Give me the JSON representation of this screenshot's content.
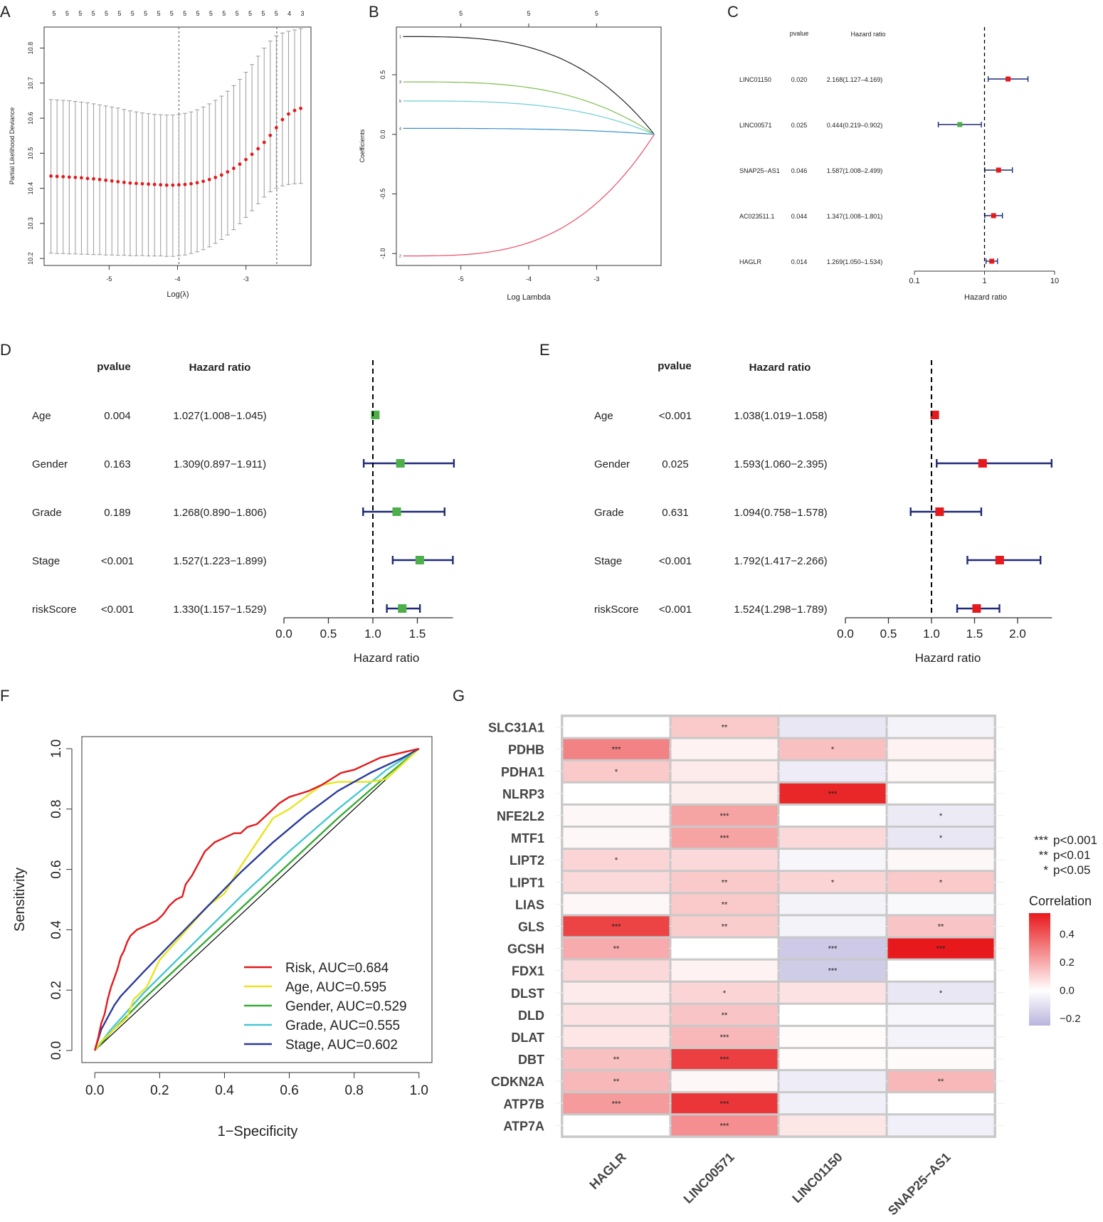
{
  "panel_labels": {
    "a": "A",
    "b": "B",
    "c": "C",
    "d": "D",
    "e": "E",
    "f": "F",
    "g": "G"
  },
  "colors": {
    "red": "#e41a1c",
    "green": "#4daf4a",
    "navy": "#1f2a78",
    "grey": "#9a9a9a",
    "black": "#000000"
  },
  "chart_data": [
    {
      "id": "A",
      "type": "scatter",
      "xlabel": "Log(λ)",
      "ylabel": "Partial Likelihood Deviance",
      "xlim": [
        -5.95,
        -2.05
      ],
      "ylim": [
        10.18,
        10.86
      ],
      "xticks": [
        "-5",
        "-4",
        "-3"
      ],
      "xtick_values": [
        -5,
        -4,
        -3
      ],
      "yticks": [
        "10.2",
        "10.3",
        "10.4",
        "10.5",
        "10.6",
        "10.7",
        "10.8"
      ],
      "ytick_values": [
        10.2,
        10.3,
        10.4,
        10.5,
        10.6,
        10.7,
        10.8
      ],
      "top_labels": [
        "5",
        "5",
        "5",
        "5",
        "5",
        "5",
        "5",
        "5",
        "5",
        "5",
        "5",
        "5",
        "5",
        "5",
        "5",
        "5",
        "5",
        "5",
        "4",
        "3"
      ],
      "vlines": [
        -3.98,
        -2.55
      ],
      "x_start": -5.85,
      "x_end": -2.2,
      "y_values": [
        10.435,
        10.434,
        10.433,
        10.432,
        10.431,
        10.43,
        10.428,
        10.427,
        10.425,
        10.423,
        10.421,
        10.419,
        10.417,
        10.415,
        10.414,
        10.413,
        10.412,
        10.411,
        10.41,
        10.409,
        10.409,
        10.41,
        10.411,
        10.413,
        10.416,
        10.42,
        10.425,
        10.431,
        10.438,
        10.447,
        10.457,
        10.469,
        10.482,
        10.497,
        10.513,
        10.531,
        10.551,
        10.573,
        10.596,
        10.612,
        10.622,
        10.628
      ],
      "lower": [
        10.215,
        10.214,
        10.214,
        10.213,
        10.213,
        10.212,
        10.212,
        10.211,
        10.211,
        10.21,
        10.21,
        10.209,
        10.209,
        10.208,
        10.208,
        10.208,
        10.207,
        10.207,
        10.207,
        10.206,
        10.206,
        10.208,
        10.21,
        10.214,
        10.219,
        10.225,
        10.233,
        10.243,
        10.254,
        10.267,
        10.282,
        10.299,
        10.317,
        10.336,
        10.356,
        10.375,
        10.39,
        10.4,
        10.407,
        10.411,
        10.413,
        10.414
      ],
      "upper": [
        10.653,
        10.652,
        10.651,
        10.65,
        10.648,
        10.646,
        10.644,
        10.641,
        10.638,
        10.635,
        10.632,
        10.629,
        10.625,
        10.621,
        10.618,
        10.615,
        10.613,
        10.611,
        10.61,
        10.609,
        10.609,
        10.611,
        10.614,
        10.618,
        10.624,
        10.632,
        10.641,
        10.651,
        10.663,
        10.677,
        10.693,
        10.711,
        10.731,
        10.753,
        10.777,
        10.8,
        10.82,
        10.835,
        10.843,
        10.848,
        10.852,
        10.855
      ]
    },
    {
      "id": "B",
      "type": "line",
      "xlabel": "Log Lambda",
      "ylabel": "Coefficients",
      "xlim": [
        -5.95,
        -2.05
      ],
      "ylim": [
        -1.1,
        0.9
      ],
      "xticks": [
        "-5",
        "-4",
        "-3"
      ],
      "xtick_values": [
        -5,
        -4,
        -3
      ],
      "yticks": [
        "-1.0",
        "-0.5",
        "0.0",
        "0.5"
      ],
      "ytick_values": [
        -1.0,
        -0.5,
        0.0,
        0.5
      ],
      "top_labels": [
        "5",
        "5",
        "5"
      ],
      "top_label_x": [
        -5,
        -4,
        -3
      ],
      "x_start": -5.85,
      "x_end": -2.15,
      "series": [
        {
          "name": "1",
          "color": "#222222",
          "start": 0.82
        },
        {
          "name": "3",
          "color": "#7fbf50",
          "start": 0.44
        },
        {
          "name": "5",
          "color": "#6ccfd6",
          "start": 0.28
        },
        {
          "name": "4",
          "color": "#3a8fd0",
          "start": 0.05
        },
        {
          "name": "2",
          "color": "#ec4b63",
          "start": -1.02
        }
      ]
    },
    {
      "id": "C",
      "type": "forest",
      "xlabel": "Hazard ratio",
      "col_pvalue": "pvalue",
      "col_hr": "Hazard ratio",
      "xticks": [
        "0.1",
        "1",
        "10"
      ],
      "xtick_values": [
        0.1,
        1,
        10
      ],
      "scale": "log",
      "rows": [
        {
          "name": "LINC01150",
          "p": "0.020",
          "hr": "2.168(1.127–4.169)",
          "est": 2.168,
          "lo": 1.127,
          "hi": 4.169,
          "color": "#e41a1c"
        },
        {
          "name": "LINC00571",
          "p": "0.025",
          "hr": "0.444(0.219–0.902)",
          "est": 0.444,
          "lo": 0.219,
          "hi": 0.902,
          "color": "#4daf4a"
        },
        {
          "name": "SNAP25−AS1",
          "p": "0.046",
          "hr": "1.587(1.008–2.499)",
          "est": 1.587,
          "lo": 1.008,
          "hi": 2.499,
          "color": "#e41a1c"
        },
        {
          "name": "AC023511.1",
          "p": "0.044",
          "hr": "1.347(1.008–1.801)",
          "est": 1.347,
          "lo": 1.008,
          "hi": 1.801,
          "color": "#e41a1c"
        },
        {
          "name": "HAGLR",
          "p": "0.014",
          "hr": "1.269(1.050–1.534)",
          "est": 1.269,
          "lo": 1.05,
          "hi": 1.534,
          "color": "#e41a1c"
        }
      ]
    },
    {
      "id": "D",
      "type": "forest",
      "xlabel": "Hazard ratio",
      "col_pvalue": "pvalue",
      "col_hr": "Hazard ratio",
      "xticks": [
        "0.0",
        "0.5",
        "1.0",
        "1.5"
      ],
      "xtick_values": [
        0,
        0.5,
        1,
        1.5
      ],
      "scale": "linear",
      "xmax": 1.9,
      "rows": [
        {
          "name": "Age",
          "p": "0.004",
          "hr": "1.027(1.008−1.045)",
          "est": 1.027,
          "lo": 1.008,
          "hi": 1.045,
          "color": "#4daf4a"
        },
        {
          "name": "Gender",
          "p": "0.163",
          "hr": "1.309(0.897−1.911)",
          "est": 1.309,
          "lo": 0.897,
          "hi": 1.911,
          "color": "#4daf4a"
        },
        {
          "name": "Grade",
          "p": "0.189",
          "hr": "1.268(0.890−1.806)",
          "est": 1.268,
          "lo": 0.89,
          "hi": 1.806,
          "color": "#4daf4a"
        },
        {
          "name": "Stage",
          "p": "<0.001",
          "hr": "1.527(1.223−1.899)",
          "est": 1.527,
          "lo": 1.223,
          "hi": 1.899,
          "color": "#4daf4a"
        },
        {
          "name": "riskScore",
          "p": "<0.001",
          "hr": "1.330(1.157−1.529)",
          "est": 1.33,
          "lo": 1.157,
          "hi": 1.529,
          "color": "#4daf4a"
        }
      ]
    },
    {
      "id": "E",
      "type": "forest",
      "xlabel": "Hazard ratio",
      "col_pvalue": "pvalue",
      "col_hr": "Hazard ratio",
      "xticks": [
        "0.0",
        "0.5",
        "1.0",
        "1.5",
        "2.0"
      ],
      "xtick_values": [
        0,
        0.5,
        1,
        1.5,
        2
      ],
      "scale": "linear",
      "xmax": 2.4,
      "rows": [
        {
          "name": "Age",
          "p": "<0.001",
          "hr": "1.038(1.019−1.058)",
          "est": 1.038,
          "lo": 1.019,
          "hi": 1.058,
          "color": "#e41a1c"
        },
        {
          "name": "Gender",
          "p": "0.025",
          "hr": "1.593(1.060−2.395)",
          "est": 1.593,
          "lo": 1.06,
          "hi": 2.395,
          "color": "#e41a1c"
        },
        {
          "name": "Grade",
          "p": "0.631",
          "hr": "1.094(0.758−1.578)",
          "est": 1.094,
          "lo": 0.758,
          "hi": 1.578,
          "color": "#e41a1c"
        },
        {
          "name": "Stage",
          "p": "<0.001",
          "hr": "1.792(1.417−2.266)",
          "est": 1.792,
          "lo": 1.417,
          "hi": 2.266,
          "color": "#e41a1c"
        },
        {
          "name": "riskScore",
          "p": "<0.001",
          "hr": "1.524(1.298−1.789)",
          "est": 1.524,
          "lo": 1.298,
          "hi": 1.789,
          "color": "#e41a1c"
        }
      ]
    },
    {
      "id": "F",
      "type": "line",
      "xlabel": "1−Specificity",
      "ylabel": "Sensitivity",
      "xlim": [
        -0.04,
        1.04
      ],
      "ylim": [
        -0.04,
        1.04
      ],
      "xticks": [
        "0.0",
        "0.2",
        "0.4",
        "0.6",
        "0.8",
        "1.0"
      ],
      "xtick_values": [
        0,
        0.2,
        0.4,
        0.6,
        0.8,
        1.0
      ],
      "yticks": [
        "0.0",
        "0.2",
        "0.4",
        "0.6",
        "0.8",
        "1.0"
      ],
      "ytick_values": [
        0,
        0.2,
        0.4,
        0.6,
        0.8,
        1.0
      ],
      "series": [
        {
          "name": "Gender",
          "label": "Gender, AUC=0.529",
          "color": "#3aaa35",
          "x": [
            0,
            0.05,
            0.15,
            0.3,
            0.45,
            0.6,
            0.75,
            0.9,
            1
          ],
          "y": [
            0,
            0.06,
            0.17,
            0.32,
            0.47,
            0.62,
            0.77,
            0.91,
            1
          ]
        },
        {
          "name": "Grade",
          "label": "Grade, AUC=0.555",
          "color": "#47c7d0",
          "x": [
            0,
            0.05,
            0.15,
            0.3,
            0.45,
            0.6,
            0.75,
            0.9,
            1
          ],
          "y": [
            0,
            0.07,
            0.19,
            0.35,
            0.51,
            0.66,
            0.8,
            0.93,
            1
          ]
        },
        {
          "name": "Age",
          "label": "Age, AUC=0.595",
          "color": "#e8e41f",
          "x": [
            0,
            0.02,
            0.05,
            0.1,
            0.12,
            0.16,
            0.2,
            0.25,
            0.3,
            0.35,
            0.4,
            0.45,
            0.5,
            0.55,
            0.6,
            0.65,
            0.7,
            0.75,
            0.8,
            0.85,
            0.9,
            0.95,
            1
          ],
          "y": [
            0,
            0.03,
            0.06,
            0.11,
            0.17,
            0.21,
            0.3,
            0.36,
            0.42,
            0.48,
            0.52,
            0.61,
            0.69,
            0.77,
            0.8,
            0.84,
            0.88,
            0.89,
            0.89,
            0.89,
            0.9,
            0.95,
            1
          ]
        },
        {
          "name": "Stage",
          "label": "Stage, AUC=0.602",
          "color": "#2b3b9c",
          "x": [
            0,
            0.02,
            0.04,
            0.06,
            0.08,
            0.15,
            0.25,
            0.35,
            0.45,
            0.55,
            0.65,
            0.75,
            0.85,
            0.95,
            1
          ],
          "y": [
            0,
            0.07,
            0.11,
            0.15,
            0.18,
            0.26,
            0.37,
            0.48,
            0.59,
            0.69,
            0.78,
            0.86,
            0.92,
            0.97,
            1
          ]
        },
        {
          "name": "Risk",
          "label": "Risk, AUC=0.684",
          "color": "#e31a1c",
          "x": [
            0,
            0.01,
            0.02,
            0.03,
            0.04,
            0.05,
            0.06,
            0.07,
            0.08,
            0.09,
            0.1,
            0.11,
            0.12,
            0.13,
            0.15,
            0.17,
            0.19,
            0.21,
            0.23,
            0.25,
            0.27,
            0.28,
            0.3,
            0.32,
            0.34,
            0.35,
            0.37,
            0.39,
            0.41,
            0.43,
            0.45,
            0.47,
            0.5,
            0.53,
            0.55,
            0.57,
            0.6,
            0.63,
            0.66,
            0.7,
            0.73,
            0.76,
            0.8,
            0.84,
            0.88,
            0.92,
            0.96,
            1
          ],
          "y": [
            0,
            0.04,
            0.09,
            0.12,
            0.17,
            0.21,
            0.24,
            0.27,
            0.31,
            0.33,
            0.36,
            0.38,
            0.39,
            0.4,
            0.41,
            0.42,
            0.43,
            0.45,
            0.48,
            0.5,
            0.51,
            0.55,
            0.58,
            0.62,
            0.66,
            0.67,
            0.69,
            0.7,
            0.71,
            0.72,
            0.72,
            0.74,
            0.75,
            0.78,
            0.8,
            0.82,
            0.84,
            0.85,
            0.86,
            0.88,
            0.9,
            0.92,
            0.93,
            0.95,
            0.97,
            0.98,
            0.99,
            1
          ]
        }
      ]
    },
    {
      "id": "G",
      "type": "heatmap",
      "title": "Correlation",
      "columns": [
        "HAGLR",
        "LINC00571",
        "LINC01150",
        "SNAP25−AS1"
      ],
      "rows": [
        "SLC31A1",
        "PDHB",
        "PDHA1",
        "NLRP3",
        "NFE2L2",
        "MTF1",
        "LIPT2",
        "LIPT1",
        "LIAS",
        "GLS",
        "GCSH",
        "FDX1",
        "DLST",
        "DLD",
        "DLAT",
        "DBT",
        "CDKN2A",
        "ATP7B",
        "ATP7A"
      ],
      "values": [
        [
          0.0,
          0.13,
          -0.08,
          -0.04
        ],
        [
          0.3,
          0.03,
          0.15,
          0.03
        ],
        [
          0.13,
          0.05,
          -0.06,
          0.02
        ],
        [
          0.0,
          0.04,
          0.52,
          0.0
        ],
        [
          0.02,
          0.22,
          0.0,
          -0.07
        ],
        [
          0.02,
          0.22,
          0.09,
          -0.08
        ],
        [
          0.1,
          0.09,
          -0.03,
          0.02
        ],
        [
          0.09,
          0.13,
          0.1,
          0.13
        ],
        [
          0.02,
          0.13,
          -0.04,
          -0.02
        ],
        [
          0.45,
          0.12,
          -0.04,
          0.14
        ],
        [
          0.2,
          0.0,
          -0.18,
          0.55
        ],
        [
          0.09,
          0.03,
          -0.17,
          0.0
        ],
        [
          0.05,
          0.1,
          0.07,
          -0.08
        ],
        [
          0.07,
          0.14,
          0.0,
          -0.03
        ],
        [
          0.06,
          0.17,
          0.01,
          -0.04
        ],
        [
          0.15,
          0.46,
          0.01,
          0.01
        ],
        [
          0.17,
          0.02,
          -0.06,
          0.17
        ],
        [
          0.24,
          0.48,
          -0.05,
          0.0
        ],
        [
          0.0,
          0.27,
          0.06,
          -0.05
        ]
      ],
      "stars": [
        [
          "",
          "**",
          "",
          ""
        ],
        [
          "***",
          "",
          "*",
          ""
        ],
        [
          "*",
          "",
          "",
          ""
        ],
        [
          "",
          "",
          "***",
          ""
        ],
        [
          "",
          "***",
          "",
          "*"
        ],
        [
          "",
          "***",
          "",
          "*"
        ],
        [
          "*",
          "",
          "",
          ""
        ],
        [
          "",
          "**",
          "*",
          "*"
        ],
        [
          "",
          "**",
          "",
          ""
        ],
        [
          "***",
          "**",
          "",
          "**"
        ],
        [
          "**",
          "",
          "***",
          "***"
        ],
        [
          "",
          "",
          "***",
          ""
        ],
        [
          "",
          "*",
          "",
          "*"
        ],
        [
          "",
          "**",
          "",
          ""
        ],
        [
          "",
          "***",
          "",
          ""
        ],
        [
          "**",
          "***",
          "",
          ""
        ],
        [
          "**",
          "",
          "",
          "**"
        ],
        [
          "***",
          "***",
          "",
          ""
        ],
        [
          "",
          "***",
          "",
          ""
        ]
      ],
      "sig_legend": [
        {
          "stars": "***",
          "label": "p<0.001"
        },
        {
          "stars": "**",
          "label": "p<0.01"
        },
        {
          "stars": "*",
          "label": "p<0.05"
        }
      ],
      "colorbar_ticks": [
        "0.4",
        "0.2",
        "0.0",
        "−0.2"
      ],
      "colorbar_tick_values": [
        0.4,
        0.2,
        0.0,
        -0.2
      ],
      "range": [
        -0.25,
        0.55
      ]
    }
  ]
}
